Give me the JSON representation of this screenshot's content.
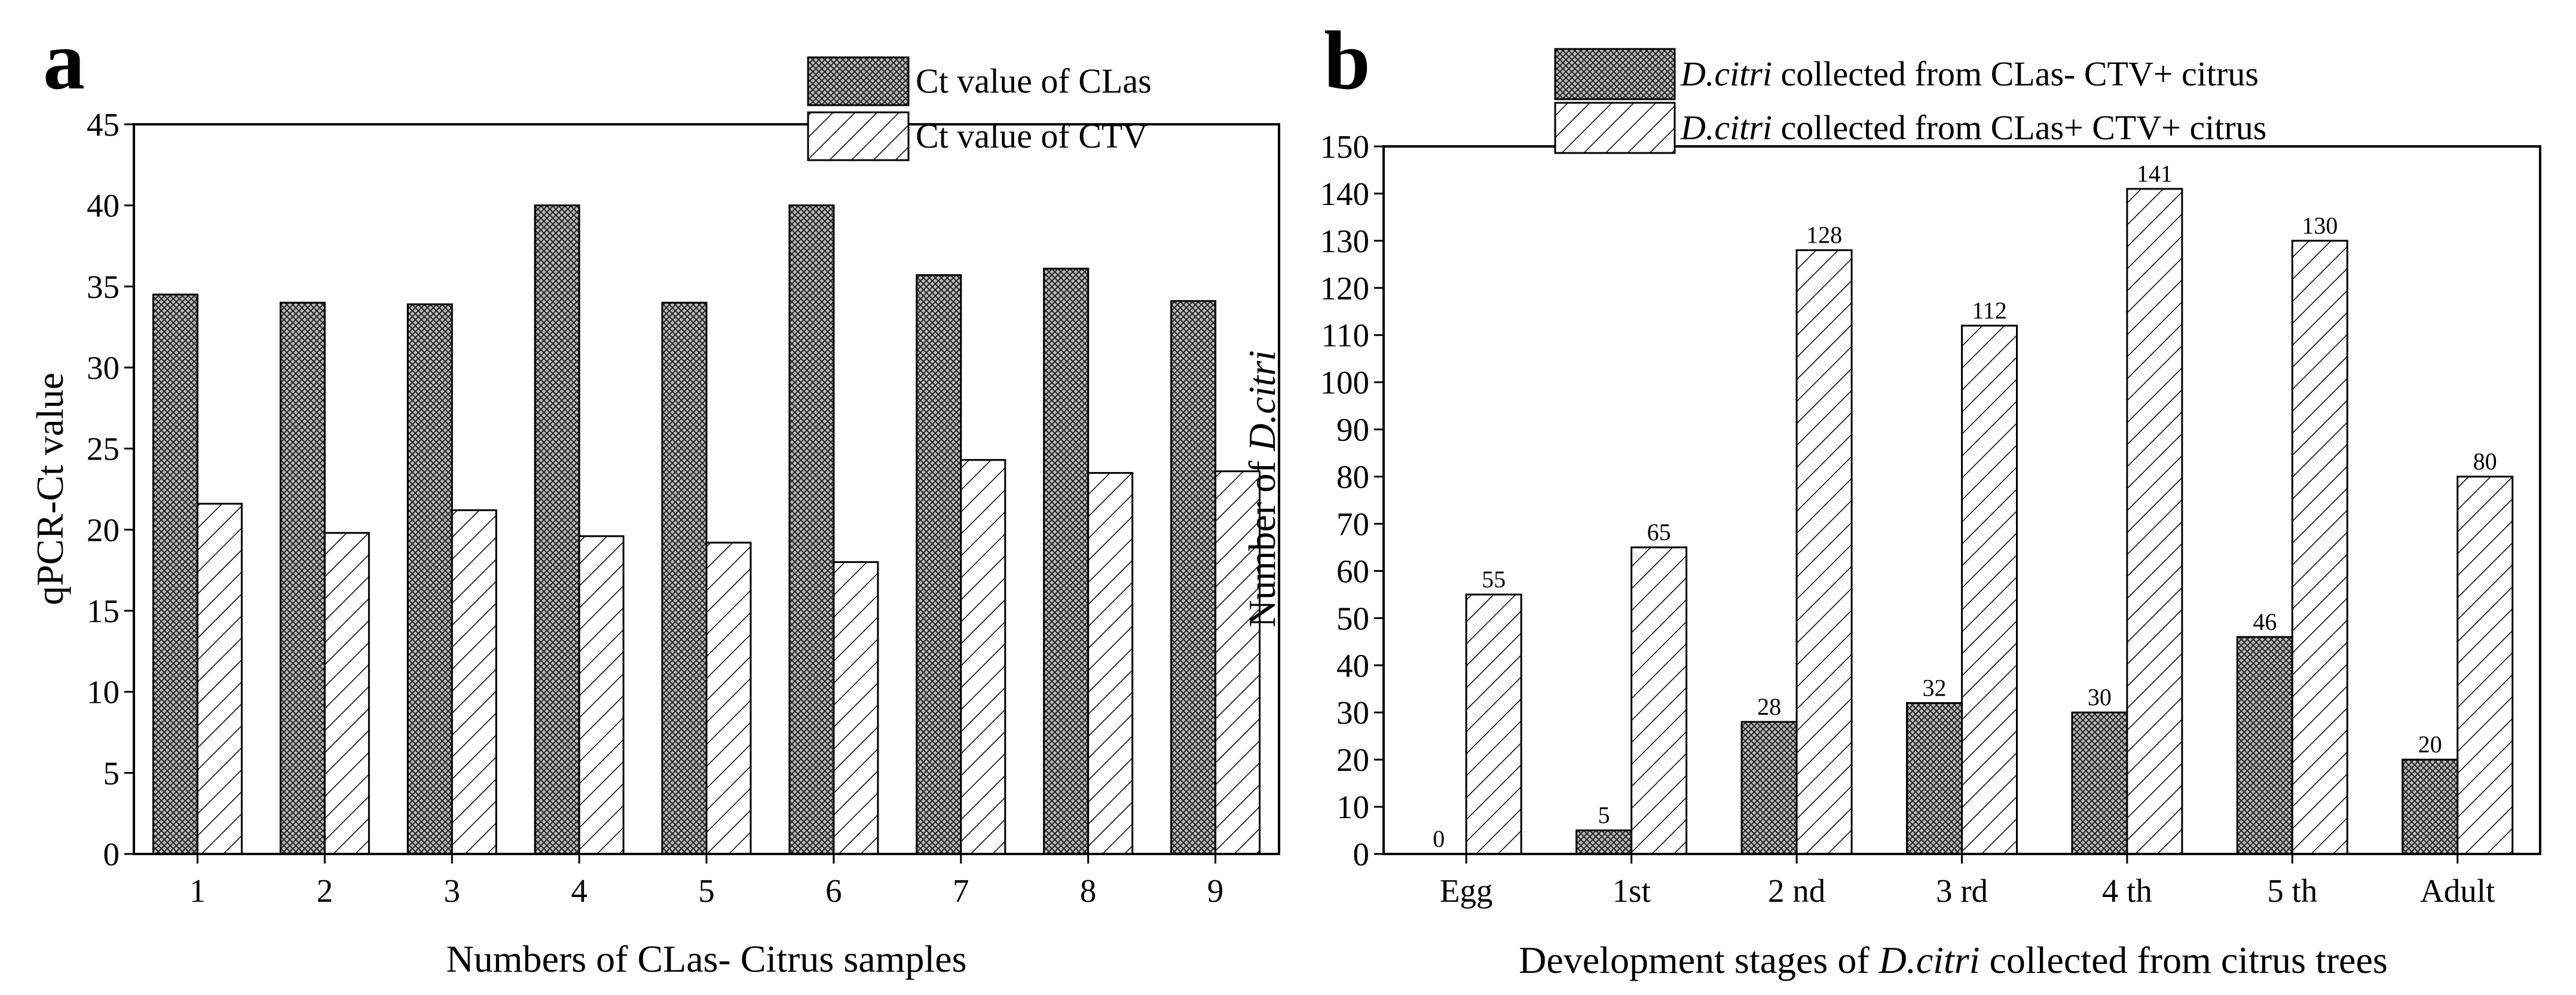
{
  "chart_data": [
    {
      "type": "bar",
      "panel_label": "a",
      "title": "",
      "xlabel": "Numbers of CLas- Citrus samples",
      "ylabel": "qPCR-Ct value",
      "categories": [
        "1",
        "2",
        "3",
        "4",
        "5",
        "6",
        "7",
        "8",
        "9"
      ],
      "ylim": [
        0,
        45
      ],
      "yticks": [
        0,
        5,
        10,
        15,
        20,
        25,
        30,
        35,
        40,
        45
      ],
      "legend_position": "top-right",
      "series": [
        {
          "name": "Ct value of CLas",
          "pattern": "crosshatch",
          "values": [
            34.5,
            34.0,
            33.9,
            40.0,
            34.0,
            40.0,
            35.7,
            36.1,
            34.1
          ]
        },
        {
          "name": "Ct value of CTV",
          "pattern": "diagonal",
          "values": [
            21.6,
            19.8,
            21.2,
            19.6,
            19.2,
            18.0,
            24.3,
            23.5,
            23.6
          ]
        }
      ]
    },
    {
      "type": "bar",
      "panel_label": "b",
      "title": "",
      "xlabel_prefix": "Development stages of ",
      "xlabel_species": "D.citri",
      "xlabel_suffix": " collected from citrus trees",
      "ylabel_prefix": "Number of ",
      "ylabel_species": "D.citri",
      "categories": [
        "Egg",
        "1st",
        "2 nd",
        "3 rd",
        "4 th",
        "5 th",
        "Adult"
      ],
      "ylim": [
        0,
        150
      ],
      "yticks": [
        0,
        10,
        20,
        30,
        40,
        50,
        60,
        70,
        80,
        90,
        100,
        110,
        120,
        130,
        140,
        150
      ],
      "legend_position": "top",
      "series": [
        {
          "name_species": "D.citri",
          "name_rest": " collected from CLas- CTV+ citrus",
          "pattern": "crosshatch",
          "values": [
            0,
            5,
            28,
            32,
            30,
            46,
            20
          ],
          "labels": [
            "0",
            "5",
            "28",
            "32",
            "30",
            "46",
            "20"
          ]
        },
        {
          "name_species": "D.citri",
          "name_rest": " collected from CLas+ CTV+ citrus",
          "pattern": "diagonal",
          "values": [
            55,
            65,
            128,
            112,
            141,
            130,
            80
          ],
          "labels": [
            "55",
            "65",
            "128",
            "112",
            "141",
            "130",
            "80"
          ]
        }
      ]
    }
  ]
}
